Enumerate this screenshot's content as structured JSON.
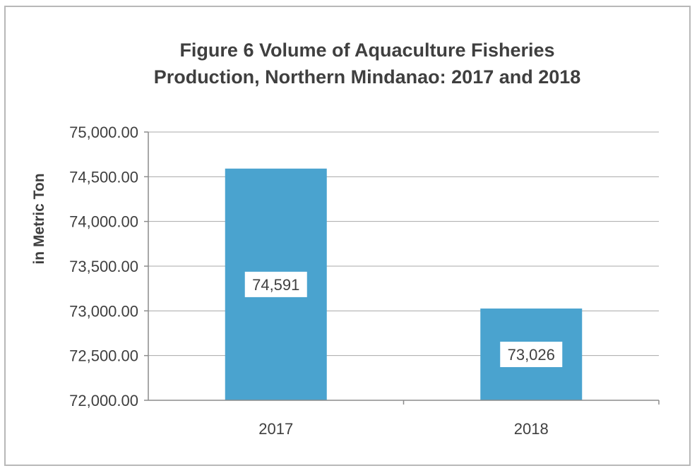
{
  "chart_data": {
    "type": "bar",
    "title_lines": [
      "Figure 6 Volume of Aquaculture Fisheries",
      "Production, Northern Mindanao: 2017 and 2018"
    ],
    "xlabel": "",
    "ylabel": "in Metric Ton",
    "categories": [
      "2017",
      "2018"
    ],
    "values": [
      74591,
      73026
    ],
    "data_labels": [
      "74,591",
      "73,026"
    ],
    "ylim": [
      72000,
      75000
    ],
    "yticks": [
      72000,
      72500,
      73000,
      73500,
      74000,
      74500,
      75000
    ],
    "ytick_labels": [
      "72,000.00",
      "72,500.00",
      "73,000.00",
      "73,500.00",
      "74,000.00",
      "74,500.00",
      "75,000.00"
    ],
    "grid": true,
    "legend": "none",
    "bar_color": "#4aa3cf"
  }
}
